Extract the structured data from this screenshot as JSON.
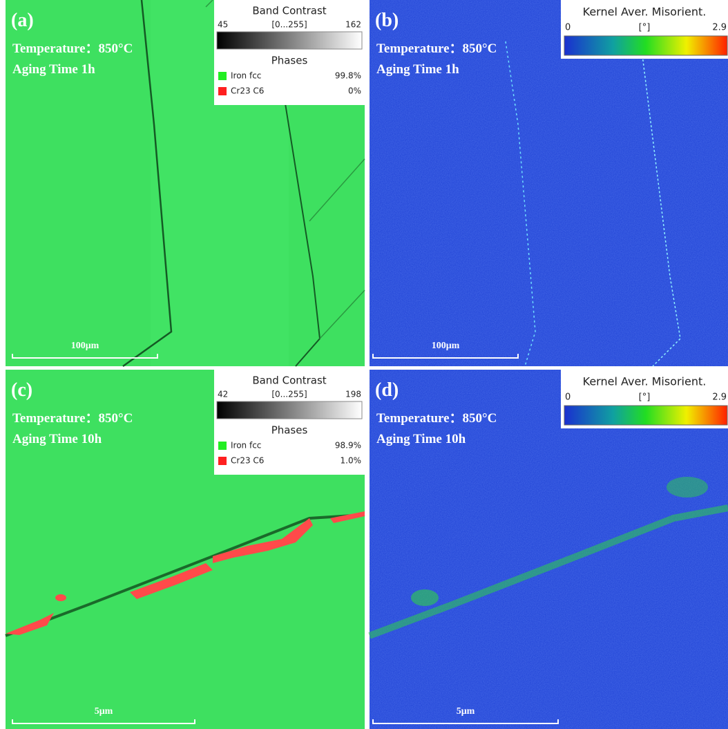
{
  "panels": [
    {
      "label": "(a)",
      "temperature": "Temperature：850°C",
      "aging_time": "Aging Time 1h",
      "scale_bar": "100μm",
      "legend": {
        "title": "Band Contrast",
        "min": "45",
        "unit": "[0...255]",
        "max": "162",
        "phases_title": "Phases",
        "phases": [
          {
            "name": "Iron fcc",
            "value": "99.8%"
          },
          {
            "name": "Cr23 C6",
            "value": "0%"
          }
        ]
      }
    },
    {
      "label": "(b)",
      "temperature": "Temperature：850°C",
      "aging_time": "Aging Time 1h",
      "scale_bar": "100μm",
      "legend": {
        "title": "Kernel Aver. Misorient.",
        "min": "0",
        "unit": "[°]",
        "max": "2.9"
      }
    },
    {
      "label": "(c)",
      "temperature": "Temperature：850°C",
      "aging_time": "Aging Time 10h",
      "scale_bar": "5μm",
      "legend": {
        "title": "Band Contrast",
        "min": "42",
        "unit": "[0...255]",
        "max": "198",
        "phases_title": "Phases",
        "phases": [
          {
            "name": "Iron fcc",
            "value": "98.9%"
          },
          {
            "name": "Cr23 C6",
            "value": "1.0%"
          }
        ]
      }
    },
    {
      "label": "(d)",
      "temperature": "Temperature：850°C",
      "aging_time": "Aging Time 10h",
      "scale_bar": "5μm",
      "legend": {
        "title": "Kernel Aver. Misorient.",
        "min": "0",
        "unit": "[°]",
        "max": "2.9"
      }
    }
  ]
}
